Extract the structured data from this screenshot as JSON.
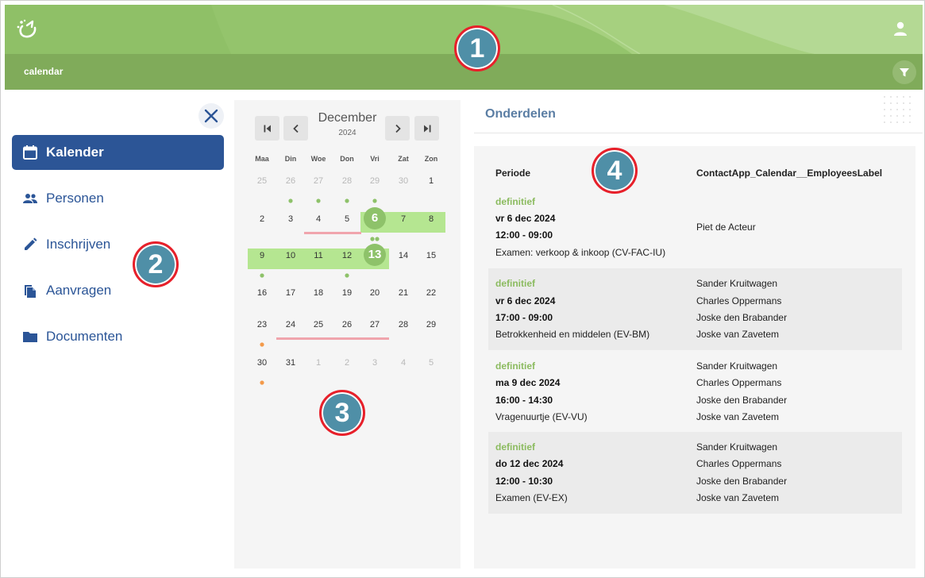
{
  "header": {
    "breadcrumb": "calendar"
  },
  "sidebar": {
    "items": [
      {
        "label": "Kalender",
        "icon": "calendar-icon",
        "active": true
      },
      {
        "label": "Personen",
        "icon": "people-icon",
        "active": false
      },
      {
        "label": "Inschrijven",
        "icon": "pencil-icon",
        "active": false
      },
      {
        "label": "Aanvragen",
        "icon": "documents-icon",
        "active": false
      },
      {
        "label": "Documenten",
        "icon": "folder-icon",
        "active": false
      }
    ]
  },
  "calendar": {
    "month": "December",
    "year": "2024",
    "weekdays": [
      "Maa",
      "Din",
      "Woe",
      "Don",
      "Vri",
      "Zat",
      "Zon"
    ],
    "weeks": [
      [
        {
          "d": "25",
          "o": true,
          "dots": []
        },
        {
          "d": "26",
          "o": true,
          "dots": [
            "g"
          ]
        },
        {
          "d": "27",
          "o": true,
          "dots": [
            "g"
          ]
        },
        {
          "d": "28",
          "o": true,
          "dots": [
            "g"
          ]
        },
        {
          "d": "29",
          "o": true,
          "dots": [
            "g"
          ]
        },
        {
          "d": "30",
          "o": true,
          "dots": []
        },
        {
          "d": "1",
          "dots": []
        }
      ],
      [
        {
          "d": "2",
          "dots": []
        },
        {
          "d": "3",
          "dots": []
        },
        {
          "d": "4",
          "dots": []
        },
        {
          "d": "5",
          "dots": []
        },
        {
          "d": "6",
          "hl": true,
          "circle": true,
          "dots": [
            "g",
            "g"
          ]
        },
        {
          "d": "7",
          "hl": true,
          "dots": []
        },
        {
          "d": "8",
          "hl": true,
          "dots": []
        }
      ],
      [
        {
          "d": "9",
          "hl": true,
          "dots": [
            "g"
          ]
        },
        {
          "d": "10",
          "hl": true,
          "dots": []
        },
        {
          "d": "11",
          "hl": true,
          "dots": []
        },
        {
          "d": "12",
          "hl": true,
          "dots": [
            "g"
          ]
        },
        {
          "d": "13",
          "hl": true,
          "circle": true,
          "dots": []
        },
        {
          "d": "14",
          "dots": []
        },
        {
          "d": "15",
          "dots": []
        }
      ],
      [
        {
          "d": "16",
          "dots": []
        },
        {
          "d": "17",
          "dots": []
        },
        {
          "d": "18",
          "dots": []
        },
        {
          "d": "19",
          "dots": []
        },
        {
          "d": "20",
          "dots": []
        },
        {
          "d": "21",
          "dots": []
        },
        {
          "d": "22",
          "dots": []
        }
      ],
      [
        {
          "d": "23",
          "dots": [
            "o"
          ]
        },
        {
          "d": "24",
          "dots": []
        },
        {
          "d": "25",
          "dots": []
        },
        {
          "d": "26",
          "dots": []
        },
        {
          "d": "27",
          "dots": []
        },
        {
          "d": "28",
          "dots": []
        },
        {
          "d": "29",
          "dots": []
        }
      ],
      [
        {
          "d": "30",
          "dots": [
            "o"
          ]
        },
        {
          "d": "31",
          "dots": []
        },
        {
          "d": "1",
          "o": true,
          "dots": []
        },
        {
          "d": "2",
          "o": true,
          "dots": []
        },
        {
          "d": "3",
          "o": true,
          "dots": []
        },
        {
          "d": "4",
          "o": true,
          "dots": []
        },
        {
          "d": "5",
          "o": true,
          "dots": []
        }
      ]
    ],
    "underlines": [
      {
        "week": 1,
        "from": 2,
        "to": 3
      },
      {
        "week": 4,
        "from": 1,
        "to": 4
      }
    ],
    "colors": {
      "highlight": "#b5e691",
      "circle": "#8ec26a",
      "dot_green": "#8ec26a",
      "dot_orange": "#f39a4a",
      "underline": "#f0a5ad"
    }
  },
  "onderdelen": {
    "title": "Onderdelen",
    "col_periode": "Periode",
    "col_employees": "ContactApp_Calendar__EmployeesLabel",
    "entries": [
      {
        "status": "definitief",
        "date": "vr 6 dec 2024",
        "time": "12:00 - 09:00",
        "name": "Examen: verkoop & inkoop (CV-FAC-IU)",
        "employees": [
          "Piet de Acteur"
        ]
      },
      {
        "status": "definitief",
        "date": "vr 6 dec 2024",
        "time": "17:00 - 09:00",
        "name": "Betrokkenheid en middelen (EV-BM)",
        "employees": [
          "Sander Kruitwagen",
          "Charles Oppermans",
          "Joske den Brabander",
          "Joske van Zavetem"
        ]
      },
      {
        "status": "definitief",
        "date": "ma 9 dec 2024",
        "time": "16:00 - 14:30",
        "name": "Vragenuurtje (EV-VU)",
        "employees": [
          "Sander Kruitwagen",
          "Charles Oppermans",
          "Joske den Brabander",
          "Joske van Zavetem"
        ]
      },
      {
        "status": "definitief",
        "date": "do 12 dec 2024",
        "time": "12:00 - 10:30",
        "name": "Examen (EV-EX)",
        "employees": [
          "Sander Kruitwagen",
          "Charles Oppermans",
          "Joske den Brabander",
          "Joske van Zavetem"
        ]
      }
    ]
  },
  "badges": [
    "1",
    "2",
    "3",
    "4"
  ]
}
